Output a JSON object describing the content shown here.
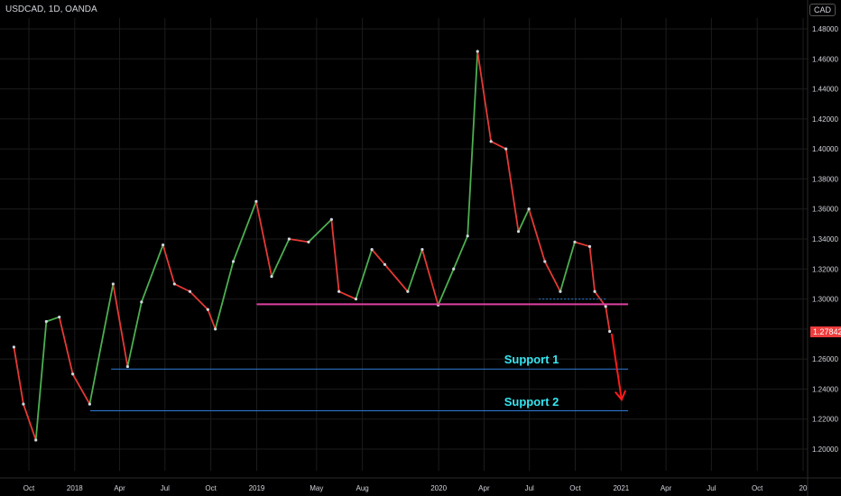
{
  "header": {
    "symbol": "USDCAD, 1D, OANDA",
    "currency": "CAD"
  },
  "price_tag": "1.27842",
  "colors": {
    "background": "#000000",
    "grid": "#1c1c1c",
    "up": "#4caf50",
    "down": "#e53935",
    "pink_line": "#e040a0",
    "support_line": "#2e7dd7",
    "arrow": "#ff1a1a",
    "text": "#d1d4dc",
    "annotation": "#35e6f2"
  },
  "annotations": [
    {
      "label": "Support 1",
      "value": 1.2533
    },
    {
      "label": "Support 2",
      "value": 1.2255
    }
  ],
  "chart_data": {
    "type": "line",
    "title": "USDCAD, 1D, OANDA",
    "xlabel": "",
    "ylabel": "",
    "ylim": [
      1.19,
      1.49
    ],
    "y_ticks": [
      1.2,
      1.22,
      1.24,
      1.26,
      1.28,
      1.3,
      1.32,
      1.34,
      1.36,
      1.38,
      1.4,
      1.42,
      1.44,
      1.46,
      1.48
    ],
    "y_tick_labels": [
      "1.20000",
      "1.22000",
      "1.24000",
      "1.26000",
      "1.28000",
      "1.30000",
      "1.32000",
      "1.34000",
      "1.36000",
      "1.38000",
      "1.40000",
      "1.42000",
      "1.44000",
      "1.46000",
      "1.48000"
    ],
    "x_tick_labels": [
      "Oct",
      "2018",
      "Apr",
      "Jul",
      "Oct",
      "2019",
      "May",
      "Aug",
      "2020",
      "Apr",
      "Jul",
      "Oct",
      "2021",
      "Apr",
      "Jul",
      "Oct",
      "20"
    ],
    "x_tick_dates": [
      "2017-10-01",
      "2018-01-01",
      "2018-04-01",
      "2018-07-01",
      "2018-10-01",
      "2019-01-01",
      "2019-05-01",
      "2019-08-01",
      "2020-01-01",
      "2020-04-01",
      "2020-07-01",
      "2020-10-01",
      "2021-01-01",
      "2021-04-01",
      "2021-07-01",
      "2021-10-01",
      "2022-01-01"
    ],
    "series": [
      {
        "x": [
          "2017-09-01",
          "2017-09-20",
          "2017-10-15",
          "2017-11-05",
          "2017-12-01",
          "2017-12-28",
          "2018-01-31",
          "2018-03-19",
          "2018-04-17",
          "2018-05-15",
          "2018-06-27",
          "2018-07-20",
          "2018-08-20",
          "2018-09-25",
          "2018-10-10",
          "2018-11-15",
          "2018-12-31",
          "2019-01-31",
          "2019-03-07",
          "2019-04-15",
          "2019-05-31",
          "2019-06-15",
          "2019-07-19",
          "2019-08-20",
          "2019-09-15",
          "2019-10-31",
          "2019-11-29",
          "2019-12-31",
          "2020-01-31",
          "2020-02-28",
          "2020-03-19",
          "2020-04-15",
          "2020-05-15",
          "2020-06-09",
          "2020-06-30",
          "2020-08-01",
          "2020-09-01",
          "2020-09-30",
          "2020-10-30",
          "2020-11-09",
          "2020-12-01",
          "2020-12-09"
        ],
        "y": [
          1.268,
          1.23,
          1.206,
          1.285,
          1.288,
          1.25,
          1.23,
          1.31,
          1.255,
          1.298,
          1.336,
          1.31,
          1.305,
          1.293,
          1.28,
          1.325,
          1.365,
          1.315,
          1.34,
          1.338,
          1.353,
          1.305,
          1.3,
          1.333,
          1.323,
          1.305,
          1.333,
          1.296,
          1.32,
          1.342,
          1.465,
          1.405,
          1.4,
          1.345,
          1.36,
          1.325,
          1.305,
          1.338,
          1.335,
          1.305,
          1.295,
          1.2784
        ]
      }
    ],
    "horizontal_lines": [
      {
        "value": 1.2965,
        "from": "2019-01-01",
        "to": "2021-01-15",
        "color": "pink"
      },
      {
        "value": 1.3,
        "from": "2020-07-20",
        "to": "2020-12-01",
        "color": "blue dotted"
      },
      {
        "value": 1.2533,
        "from": "2018-03-15",
        "to": "2021-01-15",
        "color": "blue",
        "label": "Support 1"
      },
      {
        "value": 1.2255,
        "from": "2018-02-01",
        "to": "2021-01-15",
        "color": "blue",
        "label": "Support 2"
      }
    ],
    "projection_arrow": {
      "from": {
        "x": "2020-12-13",
        "y": 1.277
      },
      "to": {
        "x": "2021-01-02",
        "y": 1.233
      }
    },
    "grid": true,
    "legend": "none"
  }
}
